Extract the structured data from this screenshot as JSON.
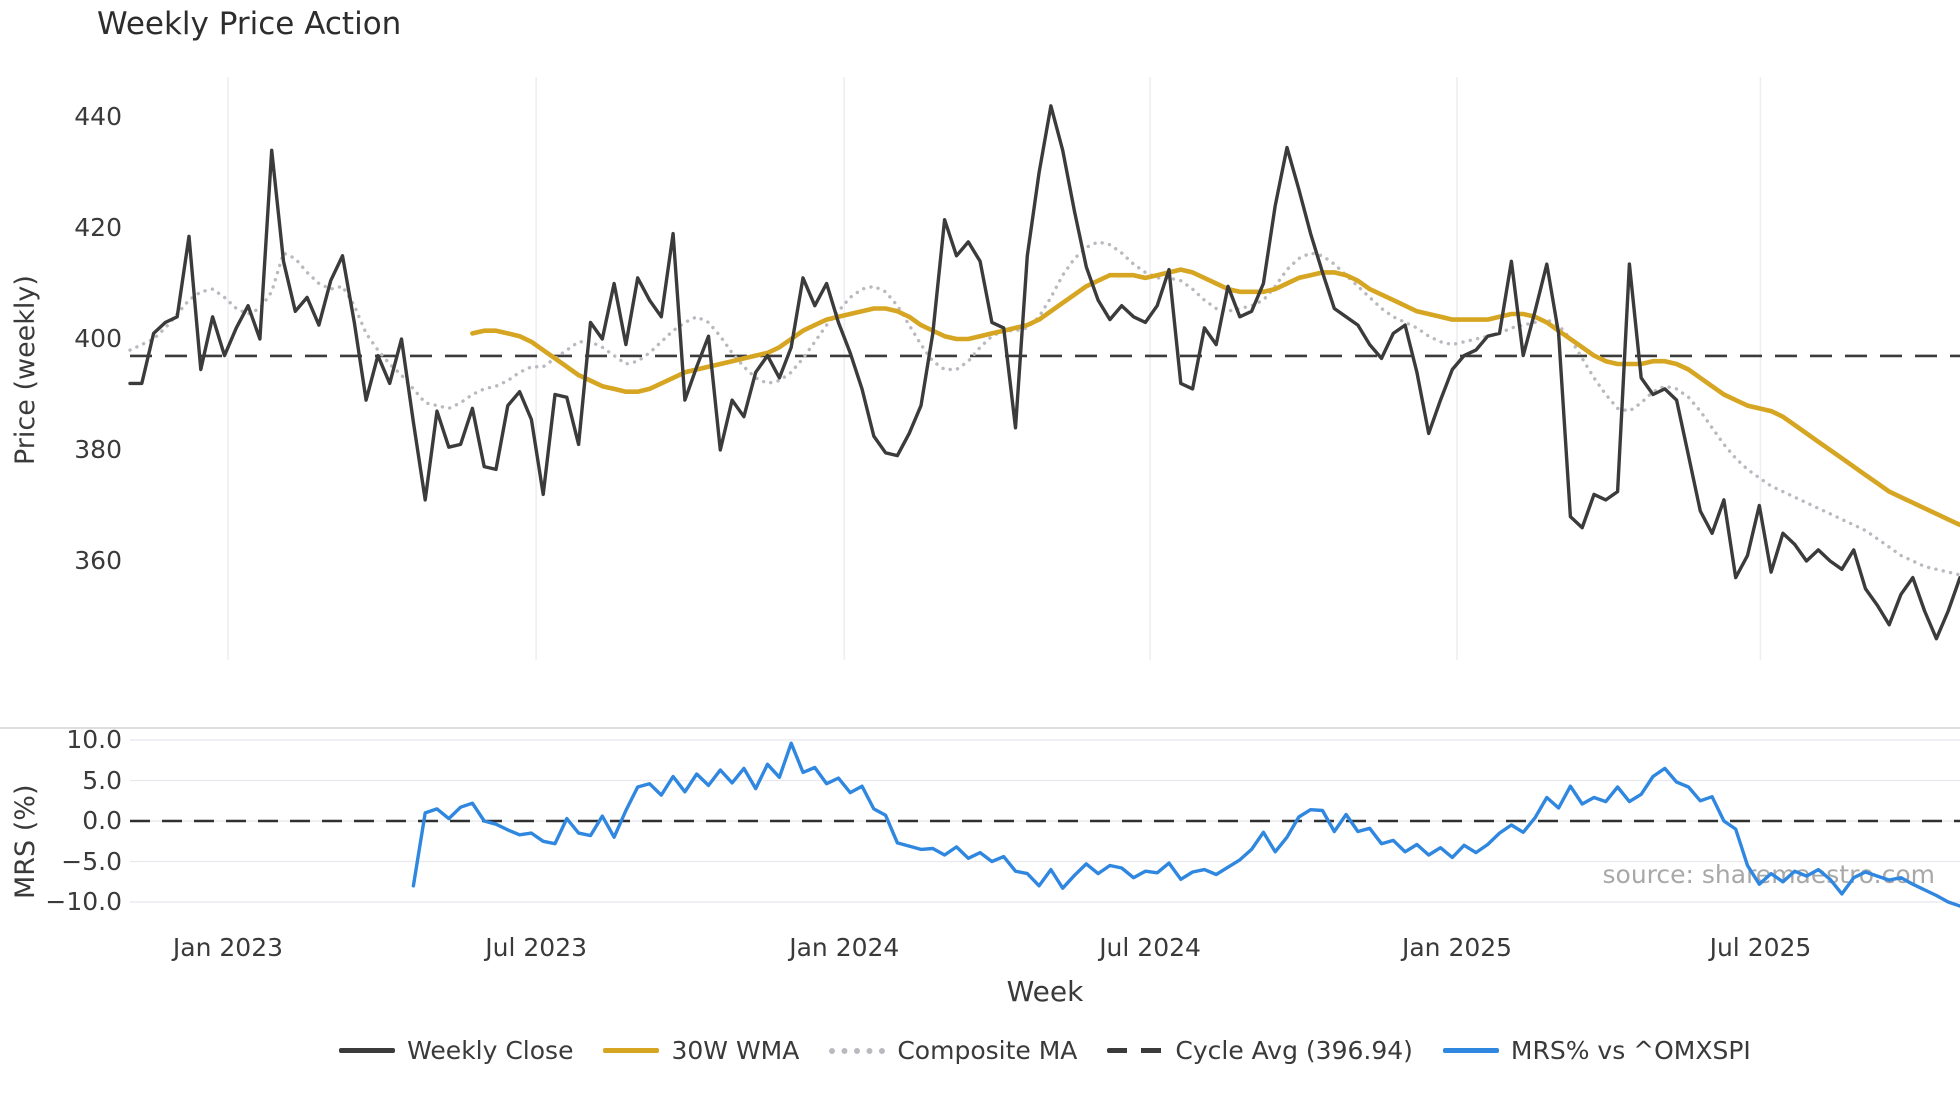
{
  "title": "Weekly Price Action",
  "source_text": "source: sharemaestro.com",
  "colors": {
    "close": "#3b3b3b",
    "wma": "#d6a522",
    "composite": "#b9b9bf",
    "cycle": "#3b3b3b",
    "mrs": "#2f87e0",
    "grid_vertical": "#ededf2",
    "grid_horizontal": "#e8e8ee",
    "panel_border": "#d4d4d8",
    "text": "#3a3a3a",
    "watermark": "#a8a8a8"
  },
  "legend": {
    "items": [
      {
        "label": "Weekly Close",
        "color": "#3b3b3b",
        "style": "solid"
      },
      {
        "label": "30W WMA",
        "color": "#d6a522",
        "style": "solid"
      },
      {
        "label": "Composite MA",
        "color": "#b9b9bf",
        "style": "dotted"
      },
      {
        "label": "Cycle Avg (396.94)",
        "color": "#3b3b3b",
        "style": "dashed"
      },
      {
        "label": "MRS% vs ^OMXSPI",
        "color": "#2f87e0",
        "style": "solid"
      }
    ]
  },
  "chart_data": [
    {
      "type": "line",
      "title": "Weekly Price Action",
      "xlabel": "Week",
      "ylabel": "Price (weekly)",
      "ylim": [
        342,
        448
      ],
      "grid": "vertical-only",
      "legend_position": "bottom-center",
      "yticks": [
        {
          "label": "440",
          "v": 440
        },
        {
          "label": "420",
          "v": 420
        },
        {
          "label": "400",
          "v": 400
        },
        {
          "label": "380",
          "v": 380
        },
        {
          "label": "360",
          "v": 360
        }
      ],
      "x_ticks": [
        {
          "label": "Jan 2023",
          "week": 8.3
        },
        {
          "label": "Jul 2023",
          "week": 34.4
        },
        {
          "label": "Jan 2024",
          "week": 60.5
        },
        {
          "label": "Jul 2024",
          "week": 86.4
        },
        {
          "label": "Jan 2025",
          "week": 112.4
        },
        {
          "label": "Jul 2025",
          "week": 138.1
        }
      ],
      "cycle_avg": 396.94,
      "series": [
        {
          "name": "Weekly Close",
          "color": "#3b3b3b",
          "style": "solid",
          "width": 3.4,
          "values": [
            392,
            392,
            401,
            403,
            404,
            418.5,
            394.5,
            404,
            397,
            402,
            406,
            400,
            434,
            414,
            405,
            407.5,
            402.5,
            410.5,
            415,
            403,
            389,
            397,
            392,
            400,
            385,
            371,
            387,
            380.5,
            381,
            387.5,
            377,
            376.5,
            388,
            390.5,
            385.5,
            372,
            390,
            389.5,
            381,
            403,
            400,
            410,
            399,
            411,
            407,
            404,
            419,
            389,
            395,
            400.5,
            380,
            389,
            386,
            394,
            397,
            393,
            398.5,
            411,
            406,
            410,
            403,
            397.5,
            391,
            382.5,
            379.5,
            379,
            383,
            388,
            401,
            421.5,
            415,
            417.5,
            414,
            403,
            402,
            384,
            415,
            430,
            442,
            434,
            423,
            413,
            407,
            403.5,
            406,
            404,
            403,
            406,
            412.5,
            392,
            391,
            402,
            399,
            409.5,
            404,
            405,
            410,
            424,
            434.5,
            427,
            419,
            412,
            405.5,
            404,
            402.5,
            399,
            396.5,
            401,
            402.5,
            394,
            383,
            389,
            394.5,
            397,
            398,
            400.5,
            401,
            414,
            397,
            405,
            413.5,
            401,
            368,
            366,
            372,
            371,
            372.5,
            413.5,
            393,
            390,
            391,
            389,
            379,
            369,
            365,
            371,
            357,
            361,
            370,
            358,
            365,
            363,
            360,
            362,
            360,
            358.5,
            362,
            355,
            352,
            348.5,
            354,
            357,
            351,
            346,
            351,
            357
          ]
        },
        {
          "name": "30W WMA",
          "color": "#d6a522",
          "style": "solid",
          "width": 4.6,
          "values": [
            null,
            null,
            null,
            null,
            null,
            null,
            null,
            null,
            null,
            null,
            null,
            null,
            null,
            null,
            null,
            null,
            null,
            null,
            null,
            null,
            null,
            null,
            null,
            null,
            null,
            null,
            null,
            null,
            null,
            401,
            401.5,
            401.5,
            401,
            400.5,
            399.5,
            398,
            396.5,
            395,
            393.5,
            392.5,
            391.5,
            391,
            390.5,
            390.5,
            391,
            392,
            393,
            394,
            394.5,
            395,
            395.5,
            396,
            396.5,
            397,
            397.5,
            398.5,
            400,
            401.5,
            402.5,
            403.5,
            404,
            404.5,
            405,
            405.5,
            405.5,
            405,
            404,
            402.5,
            401.5,
            400.5,
            400,
            400,
            400.5,
            401,
            401.5,
            402,
            402.5,
            403.5,
            405,
            406.5,
            408,
            409.5,
            410.5,
            411.5,
            411.5,
            411.5,
            411,
            411.5,
            412,
            412.5,
            412,
            411,
            410,
            409,
            408.5,
            408.5,
            408.5,
            409,
            410,
            411,
            411.5,
            412,
            412,
            411.5,
            410.5,
            409,
            408,
            407,
            406,
            405,
            404.5,
            404,
            403.5,
            403.5,
            403.5,
            403.5,
            404,
            404.5,
            404.5,
            404,
            403,
            401.5,
            400,
            398.5,
            397,
            396,
            395.5,
            395.5,
            395.5,
            396,
            396,
            395.5,
            394.5,
            393,
            391.5,
            390,
            389,
            388,
            387.5,
            387,
            386,
            384.5,
            383,
            381.5,
            380,
            378.5,
            377,
            375.5,
            374,
            372.5,
            371.5,
            370.5,
            369.5,
            368.5,
            367.5,
            366.5
          ]
        },
        {
          "name": "Composite MA",
          "color": "#b9b9bf",
          "style": "dotted",
          "width": 3.4,
          "values": [
            398,
            399,
            400,
            402,
            404.5,
            407,
            408.5,
            409,
            407.5,
            405.5,
            404.5,
            405.5,
            408.5,
            415.5,
            414.5,
            412,
            410,
            409,
            409.5,
            406,
            401,
            398,
            395.5,
            393.5,
            391,
            388.5,
            388,
            387.5,
            388.5,
            390,
            391,
            391.5,
            392.5,
            394,
            395,
            395,
            396.5,
            398,
            399.5,
            399.5,
            398.5,
            397,
            395.5,
            396,
            397.5,
            399.5,
            401.5,
            403,
            404,
            403,
            400.5,
            397.5,
            395,
            393,
            392,
            392.5,
            394,
            396.5,
            399.5,
            402.5,
            405,
            407.5,
            409,
            409.5,
            408.5,
            406,
            402.5,
            399,
            396,
            394.5,
            394.5,
            396,
            398.5,
            400.5,
            401.5,
            401.5,
            402,
            404,
            407.5,
            411.5,
            414.5,
            416.5,
            417.5,
            417,
            415.5,
            413.5,
            412,
            411,
            411,
            410.5,
            409,
            407,
            405.5,
            405,
            405.5,
            406,
            407,
            409.5,
            412.5,
            414.5,
            415.5,
            415,
            413.5,
            411.5,
            409.5,
            407.5,
            405.5,
            404,
            403,
            402,
            400.5,
            399.5,
            399,
            399.5,
            400,
            400.5,
            401,
            402,
            402.5,
            403,
            403.5,
            402.5,
            400,
            396.5,
            393,
            390,
            387.5,
            387,
            388.5,
            390.5,
            391.5,
            391,
            389.5,
            387,
            384,
            381,
            378.5,
            376.5,
            375,
            373.5,
            372.5,
            371.5,
            370.5,
            369.5,
            368.5,
            367.5,
            366.5,
            365.5,
            364,
            362.5,
            361,
            360,
            359,
            358.5,
            358,
            357.5
          ]
        },
        {
          "name": "Cycle Avg (396.94)",
          "color": "#3b3b3b",
          "style": "dashed",
          "width": 2.6,
          "constant": 396.94
        }
      ]
    },
    {
      "type": "line",
      "xlabel": "Week",
      "ylabel": "MRS (%)",
      "ylim": [
        -11.6,
        11.5
      ],
      "grid": "horizontal-only",
      "zero_line": 0,
      "yticks": [
        {
          "label": "10.0",
          "v": 10
        },
        {
          "label": "5.0",
          "v": 5
        },
        {
          "label": "0.0",
          "v": 0
        },
        {
          "label": "−5.0",
          "v": -5
        },
        {
          "label": "−10.0",
          "v": -10
        }
      ],
      "series": [
        {
          "name": "MRS% vs ^OMXSPI",
          "color": "#2f87e0",
          "style": "solid",
          "width": 3.4,
          "values": [
            null,
            null,
            null,
            null,
            null,
            null,
            null,
            null,
            null,
            null,
            null,
            null,
            null,
            null,
            null,
            null,
            null,
            null,
            null,
            null,
            null,
            null,
            null,
            null,
            -8.0,
            1.0,
            1.5,
            0.3,
            1.7,
            2.2,
            0.0,
            -0.4,
            -1.1,
            -1.7,
            -1.5,
            -2.5,
            -2.8,
            0.3,
            -1.5,
            -1.8,
            0.6,
            -2.0,
            1.3,
            4.2,
            4.6,
            3.2,
            5.5,
            3.6,
            5.8,
            4.4,
            6.3,
            4.7,
            6.5,
            4.0,
            7.0,
            5.4,
            9.6,
            6.0,
            6.6,
            4.6,
            5.3,
            3.5,
            4.3,
            1.5,
            0.7,
            -2.7,
            -3.1,
            -3.5,
            -3.4,
            -4.2,
            -3.2,
            -4.6,
            -3.9,
            -5.0,
            -4.4,
            -6.2,
            -6.5,
            -8.0,
            -6.0,
            -8.3,
            -6.7,
            -5.3,
            -6.5,
            -5.5,
            -5.8,
            -7.0,
            -6.2,
            -6.4,
            -5.2,
            -7.2,
            -6.3,
            -6.0,
            -6.6,
            -5.7,
            -4.8,
            -3.5,
            -1.4,
            -3.8,
            -2.0,
            0.5,
            1.4,
            1.3,
            -1.3,
            0.8,
            -1.3,
            -0.9,
            -2.8,
            -2.4,
            -3.8,
            -2.9,
            -4.2,
            -3.3,
            -4.5,
            -3.0,
            -3.9,
            -2.9,
            -1.5,
            -0.5,
            -1.4,
            0.4,
            2.9,
            1.6,
            4.3,
            2.1,
            2.9,
            2.4,
            4.2,
            2.4,
            3.3,
            5.5,
            6.5,
            4.8,
            4.2,
            2.5,
            3.0,
            0.0,
            -1.0,
            -5.5,
            -7.8,
            -6.5,
            -7.5,
            -6.2,
            -6.8,
            -6.0,
            -7.2,
            -9.0,
            -7.0,
            -6.3,
            -6.8,
            -7.3,
            -7.0,
            -7.8,
            -8.5,
            -9.2,
            -10.0,
            -10.5
          ]
        }
      ]
    }
  ]
}
